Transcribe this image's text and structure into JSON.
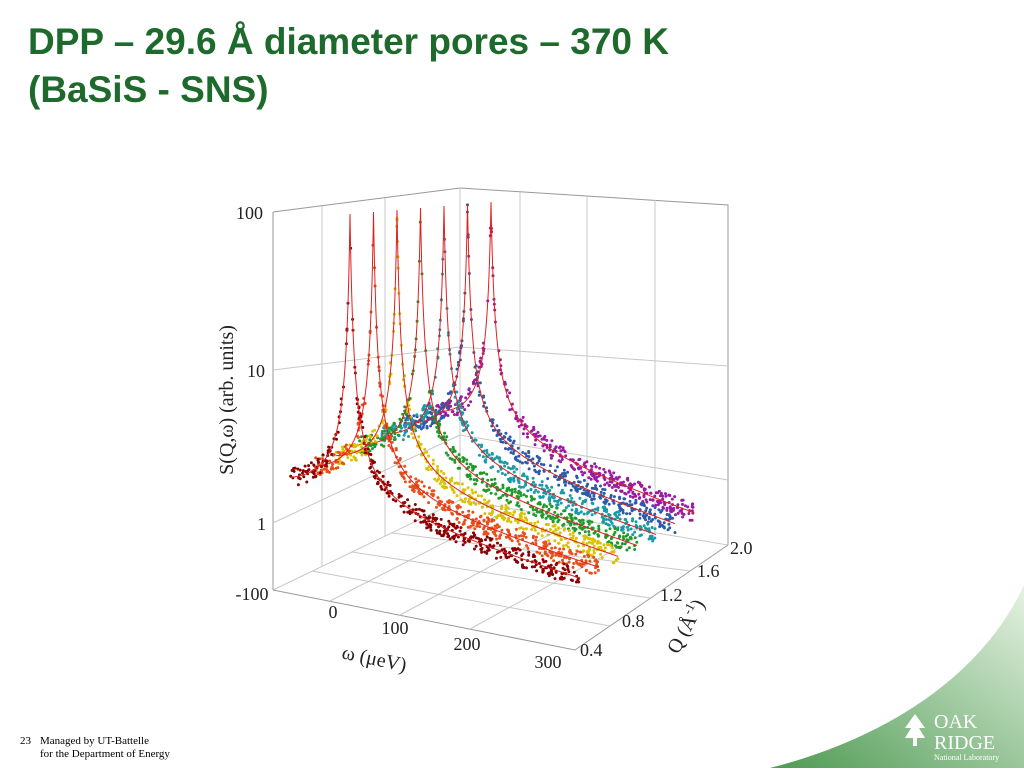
{
  "header": {
    "title_line1": "DPP – 29.6 Å diameter pores – 370 K",
    "title_line2": "(BaSiS - SNS)"
  },
  "figure": {
    "y_axis_label": "S(Q,ω) (arb. units)",
    "y_ticks": [
      "100",
      "10",
      "1"
    ],
    "x_axis_label": "ω (μeV)",
    "x_ticks": [
      "-100",
      "0",
      "100",
      "200",
      "300"
    ],
    "z_axis_label": {
      "text": "Q (Å",
      "superscript": "-1",
      "close": ")"
    },
    "z_ticks": [
      "0.4",
      "0.8",
      "1.2",
      "1.6",
      "2.0"
    ]
  },
  "footer": {
    "page": "23",
    "line1": "Managed by UT-Battelle",
    "line2": "for the Department of Energy"
  },
  "logo": {
    "line1": "OAK",
    "line2": "RIDGE",
    "line3": "National Laboratory"
  }
}
